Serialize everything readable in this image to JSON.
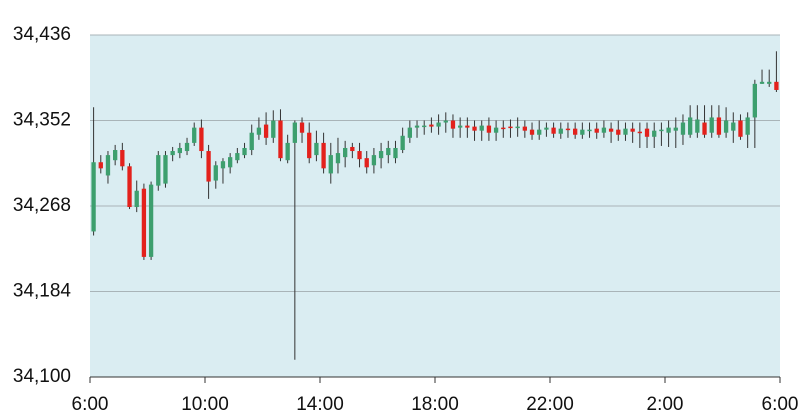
{
  "chart_data": {
    "type": "candlestick",
    "x": [
      6.125,
      6.375,
      6.625,
      6.875,
      7.125,
      7.375,
      7.625,
      7.875,
      8.125,
      8.375,
      8.625,
      8.875,
      9.125,
      9.375,
      9.625,
      9.875,
      10.125,
      10.375,
      10.625,
      10.875,
      11.125,
      11.375,
      11.625,
      11.875,
      12.125,
      12.375,
      12.625,
      12.875,
      13.125,
      13.375,
      13.625,
      13.875,
      14.125,
      14.375,
      14.625,
      14.875,
      15.125,
      15.375,
      15.625,
      15.875,
      16.125,
      16.375,
      16.625,
      16.875,
      17.125,
      17.375,
      17.625,
      17.875,
      18.125,
      18.375,
      18.625,
      18.875,
      19.125,
      19.375,
      19.625,
      19.875,
      20.125,
      20.375,
      20.625,
      20.875,
      21.125,
      21.375,
      21.625,
      21.875,
      22.125,
      22.375,
      22.625,
      22.875,
      23.125,
      23.375,
      23.625,
      23.875,
      24.125,
      24.375,
      24.625,
      24.875,
      25.125,
      25.375,
      25.625,
      25.875,
      26.125,
      26.375,
      26.625,
      26.875,
      27.125,
      27.375,
      27.625,
      27.875,
      28.125,
      28.375,
      28.625,
      28.875,
      29.125,
      29.375,
      29.625,
      29.875
    ],
    "open": [
      34243,
      34311,
      34298,
      34313,
      34323,
      34307,
      34267,
      34285,
      34218,
      34288,
      34290,
      34318,
      34320,
      34322,
      34330,
      34345,
      34322,
      34293,
      34305,
      34306,
      34313,
      34318,
      34323,
      34338,
      34348,
      34335,
      34352,
      34313,
      34330,
      34350,
      34340,
      34318,
      34330,
      34300,
      34310,
      34316,
      34326,
      34322,
      34315,
      34308,
      34315,
      34318,
      34315,
      34323,
      34335,
      34345,
      34346,
      34348,
      34346,
      34350,
      34352,
      34345,
      34347,
      34346,
      34342,
      34347,
      34340,
      34345,
      34346,
      34345,
      34346,
      34343,
      34338,
      34343,
      34345,
      34339,
      34344,
      34344,
      34338,
      34343,
      34344,
      34340,
      34344,
      34343,
      34338,
      34344,
      34341,
      34344,
      34336,
      34342,
      34340,
      34342,
      34338,
      34338,
      34340,
      34350,
      34340,
      34355,
      34340,
      34342,
      34352,
      34338,
      34355,
      34388,
      34388,
      34390
    ],
    "high": [
      34365,
      34318,
      34322,
      34328,
      34330,
      34310,
      34293,
      34290,
      34292,
      34322,
      34322,
      34326,
      34330,
      34335,
      34350,
      34353,
      34328,
      34312,
      34315,
      34320,
      34325,
      34330,
      34348,
      34355,
      34360,
      34362,
      34363,
      34338,
      34352,
      34355,
      34350,
      34342,
      34340,
      34330,
      34335,
      34332,
      34330,
      34330,
      34322,
      34325,
      34330,
      34332,
      34332,
      34345,
      34352,
      34352,
      34352,
      34355,
      34358,
      34360,
      34358,
      34355,
      34355,
      34352,
      34352,
      34355,
      34352,
      34352,
      34353,
      34355,
      34352,
      34350,
      34352,
      34350,
      34350,
      34350,
      34350,
      34350,
      34350,
      34350,
      34350,
      34352,
      34350,
      34352,
      34350,
      34350,
      34350,
      34350,
      34350,
      34350,
      34352,
      34355,
      34358,
      34367,
      34367,
      34367,
      34367,
      34367,
      34365,
      34360,
      34358,
      34360,
      34392,
      34402,
      34402,
      34420
    ],
    "low": [
      34239,
      34300,
      34290,
      34308,
      34303,
      34265,
      34262,
      34215,
      34215,
      34283,
      34286,
      34312,
      34315,
      34318,
      34327,
      34315,
      34275,
      34285,
      34290,
      34300,
      34310,
      34315,
      34318,
      34333,
      34328,
      34330,
      34312,
      34310,
      34117,
      34330,
      34310,
      34312,
      34300,
      34290,
      34300,
      34306,
      34315,
      34306,
      34300,
      34300,
      34305,
      34310,
      34310,
      34320,
      34330,
      34335,
      34338,
      34340,
      34338,
      34340,
      34335,
      34335,
      34335,
      34332,
      34332,
      34332,
      34332,
      34335,
      34335,
      34336,
      34335,
      34333,
      34333,
      34336,
      34335,
      34334,
      34335,
      34334,
      34334,
      34335,
      34334,
      34335,
      34330,
      34332,
      34332,
      34330,
      34325,
      34325,
      34325,
      34327,
      34326,
      34325,
      34328,
      34335,
      34335,
      34335,
      34335,
      34335,
      34335,
      34330,
      34333,
      34325,
      34325,
      34388,
      34385,
      34380
    ],
    "close": [
      34311,
      34305,
      34318,
      34323,
      34307,
      34267,
      34283,
      34218,
      34289,
      34318,
      34318,
      34322,
      34325,
      34330,
      34345,
      34322,
      34292,
      34308,
      34312,
      34316,
      34320,
      34325,
      34340,
      34345,
      34335,
      34352,
      34315,
      34330,
      34350,
      34340,
      34315,
      34330,
      34305,
      34318,
      34320,
      34325,
      34322,
      34314,
      34306,
      34318,
      34322,
      34325,
      34325,
      34337,
      34345,
      34347,
      34347,
      34346,
      34350,
      34352,
      34344,
      34347,
      34345,
      34342,
      34347,
      34340,
      34345,
      34344,
      34345,
      34346,
      34342,
      34338,
      34343,
      34345,
      34339,
      34344,
      34343,
      34338,
      34343,
      34343,
      34340,
      34345,
      34341,
      34338,
      34344,
      34341,
      34340,
      34336,
      34342,
      34343,
      34345,
      34345,
      34350,
      34355,
      34353,
      34338,
      34355,
      34338,
      34352,
      34350,
      34336,
      34355,
      34388,
      34390,
      34390,
      34382
    ],
    "up_color": "#3d9f6e",
    "down_color": "#e3211c",
    "wick_color": "#333333",
    "background": "#daedf2",
    "grid": true,
    "xlim": [
      6,
      30
    ],
    "xticks": [
      {
        "value": 6,
        "label": "6:00"
      },
      {
        "value": 10,
        "label": "10:00"
      },
      {
        "value": 14,
        "label": "14:00"
      },
      {
        "value": 18,
        "label": "18:00"
      },
      {
        "value": 22,
        "label": "22:00"
      },
      {
        "value": 26,
        "label": "2:00"
      },
      {
        "value": 30,
        "label": "6:00"
      }
    ],
    "ylim": [
      34100,
      34436
    ],
    "yticks": [
      {
        "value": 34100,
        "label": "34,100"
      },
      {
        "value": 34184,
        "label": "34,184"
      },
      {
        "value": 34268,
        "label": "34,268"
      },
      {
        "value": 34352,
        "label": "34,352"
      },
      {
        "value": 34436,
        "label": "34,436"
      }
    ]
  }
}
